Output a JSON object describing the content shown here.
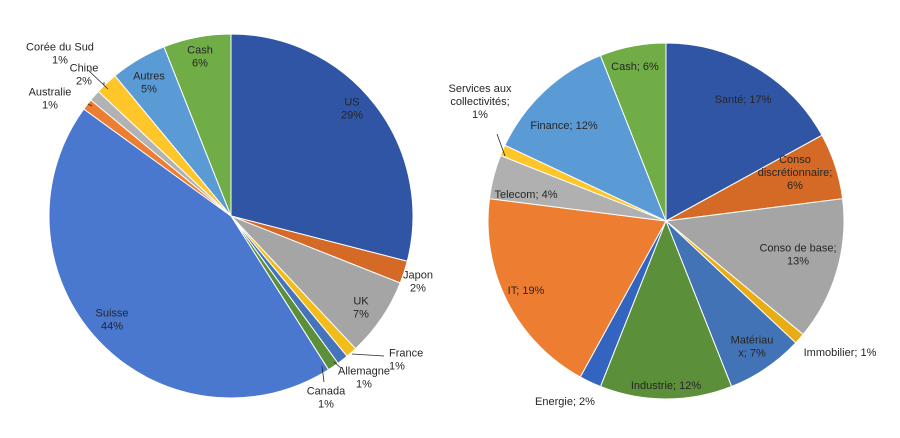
{
  "chart_data": [
    {
      "type": "pie",
      "categories": [
        "US",
        "Japon",
        "UK",
        "France",
        "Allemagne",
        "Canada",
        "Suisse",
        "Australie",
        "Corée du Sud",
        "Chine",
        "Autres",
        "Cash"
      ],
      "values": [
        29,
        2,
        7,
        1,
        1,
        1,
        44,
        1,
        1,
        2,
        5,
        6
      ],
      "value_labels": [
        "29%",
        "2%",
        "7%",
        "1%",
        "1%",
        "1%",
        "44%",
        "1%",
        "1%",
        "2%",
        "5%",
        "6%"
      ],
      "colors": [
        "#2F55A4",
        "#D46A26",
        "#A5A5A5",
        "#F2BC1A",
        "#4674BC",
        "#5C8F3A",
        "#4A78CE",
        "#ED7D31",
        "#B2B2B2",
        "#FFC62A",
        "#5B9BD5",
        "#70AD47"
      ],
      "legend": "none"
    },
    {
      "type": "pie",
      "categories": [
        "Santé",
        "Conso discrétionnaire",
        "Conso de base",
        "Immobilier",
        "Matériaux",
        "Industrie",
        "Energie",
        "IT",
        "Telecom",
        "Services aux collectivités",
        "Finance",
        "Cash"
      ],
      "values": [
        17,
        6,
        13,
        1,
        7,
        12,
        2,
        19,
        4,
        1,
        12,
        6
      ],
      "label_lines": [
        [
          "Santé; 17%"
        ],
        [
          "Conso",
          "discrétionnaire;",
          "6%"
        ],
        [
          "Conso de base;",
          "13%"
        ],
        [
          "Immobilier; 1%"
        ],
        [
          "Matériau",
          "x; 7%"
        ],
        [
          "Industrie; 12%"
        ],
        [
          "Energie; 2%"
        ],
        [
          "IT; 19%"
        ],
        [
          "Telecom; 4%"
        ],
        [
          "Services aux",
          "collectivités;",
          "1%"
        ],
        [
          "Finance; 12%"
        ],
        [
          "Cash; 6%"
        ]
      ],
      "colors": [
        "#2F55A4",
        "#D46A26",
        "#A5A5A5",
        "#E8AC14",
        "#4173B6",
        "#5C8F3A",
        "#3264C0",
        "#ED7D31",
        "#B0B0B0",
        "#FFC62A",
        "#5B9BD5",
        "#70AD47"
      ],
      "legend": "none"
    }
  ]
}
